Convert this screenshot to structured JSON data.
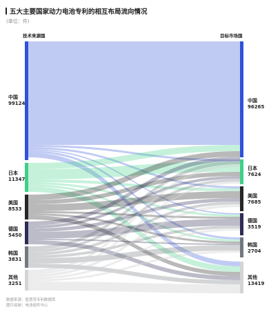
{
  "header": {
    "title": "五大主要国家动力电池专利的相互布局流向情况",
    "unit": "(单位：件)"
  },
  "axes": {
    "source_label": "技术来源国",
    "target_label": "目标市场国"
  },
  "colors": {
    "china": "#2f52d9",
    "japan": "#3fcf88",
    "usa": "#262626",
    "korea": "#2e2b55",
    "south_korea": "#737880",
    "other": "#d4d4d4"
  },
  "source_nodes": [
    {
      "name": "中国",
      "value": "99124"
    },
    {
      "name": "日本",
      "value": "11347"
    },
    {
      "name": "美国",
      "value": "8533"
    },
    {
      "name": "德国",
      "value": "5450"
    },
    {
      "name": "韩国",
      "value": "3831"
    },
    {
      "name": "其他",
      "value": "3251"
    }
  ],
  "target_nodes": [
    {
      "name": "中国",
      "value": "96265"
    },
    {
      "name": "日本",
      "value": "7624"
    },
    {
      "name": "美国",
      "value": "7685"
    },
    {
      "name": "德国",
      "value": "3519"
    },
    {
      "name": "韩国",
      "value": "2704"
    },
    {
      "name": "其他",
      "value": "13419"
    }
  ],
  "footer": {
    "source": "数据来源：智慧芽专利数据库",
    "author": "图片绘制：电池组件中心"
  }
}
